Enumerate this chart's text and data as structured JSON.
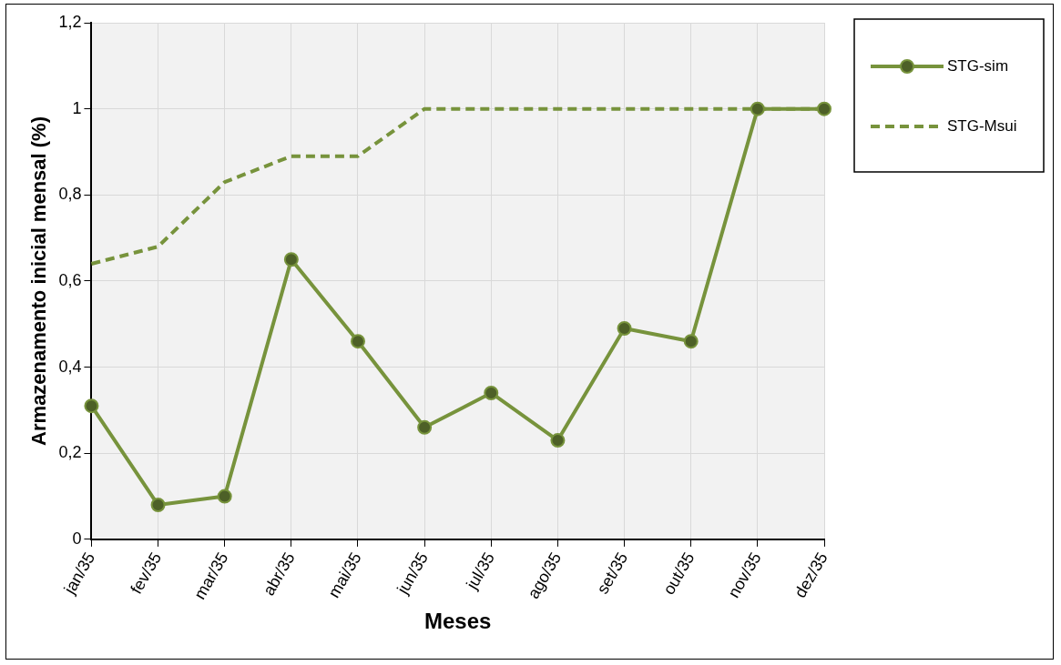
{
  "chart_data": {
    "type": "line",
    "xlabel": "Meses",
    "ylabel": "Armazenamento inicial mensal (%)",
    "categories": [
      "jan/35",
      "fev/35",
      "mar/35",
      "abr/35",
      "mai/35",
      "jun/35",
      "jul/35",
      "ago/35",
      "set/35",
      "out/35",
      "nov/35",
      "dez/35"
    ],
    "series": [
      {
        "name": "STG-sim",
        "color": "#77933c",
        "marker": "circle",
        "line_style": "solid",
        "values": [
          0.31,
          0.08,
          0.1,
          0.65,
          0.46,
          0.26,
          0.34,
          0.23,
          0.49,
          0.46,
          1,
          1
        ]
      },
      {
        "name": "STG-Msui",
        "color": "#77933c",
        "marker": "none",
        "line_style": "dashed",
        "values": [
          0.64,
          0.68,
          0.83,
          0.89,
          0.89,
          1,
          1,
          1,
          1,
          1,
          1,
          1
        ]
      }
    ],
    "ylim": [
      0,
      1.2
    ],
    "yticks": [
      0,
      {
        "value": 0.2,
        "label": "0,2"
      },
      {
        "value": 0.4,
        "label": "0,4"
      },
      {
        "value": 0.6,
        "label": "0,6"
      },
      {
        "value": 0.8,
        "label": "0,8"
      },
      1,
      {
        "value": 1.2,
        "label": "1,2"
      }
    ],
    "grid": true,
    "legend": "top right"
  }
}
